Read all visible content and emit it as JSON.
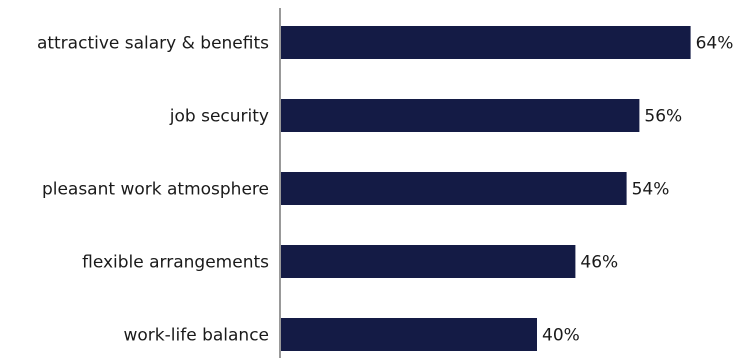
{
  "chart_data": {
    "type": "bar",
    "orientation": "horizontal",
    "categories": [
      "attractive salary & benefits",
      "job security",
      "pleasant work atmosphere",
      "flexible arrangements",
      "work-life balance"
    ],
    "values": [
      64,
      56,
      54,
      46,
      40
    ],
    "value_labels": [
      "64%",
      "56%",
      "54%",
      "46%",
      "40%"
    ],
    "unit": "%",
    "xlim": [
      0,
      100
    ],
    "grid": false,
    "legend": "none",
    "bar_color": "#141b45",
    "title": "",
    "xlabel": "",
    "ylabel": ""
  }
}
